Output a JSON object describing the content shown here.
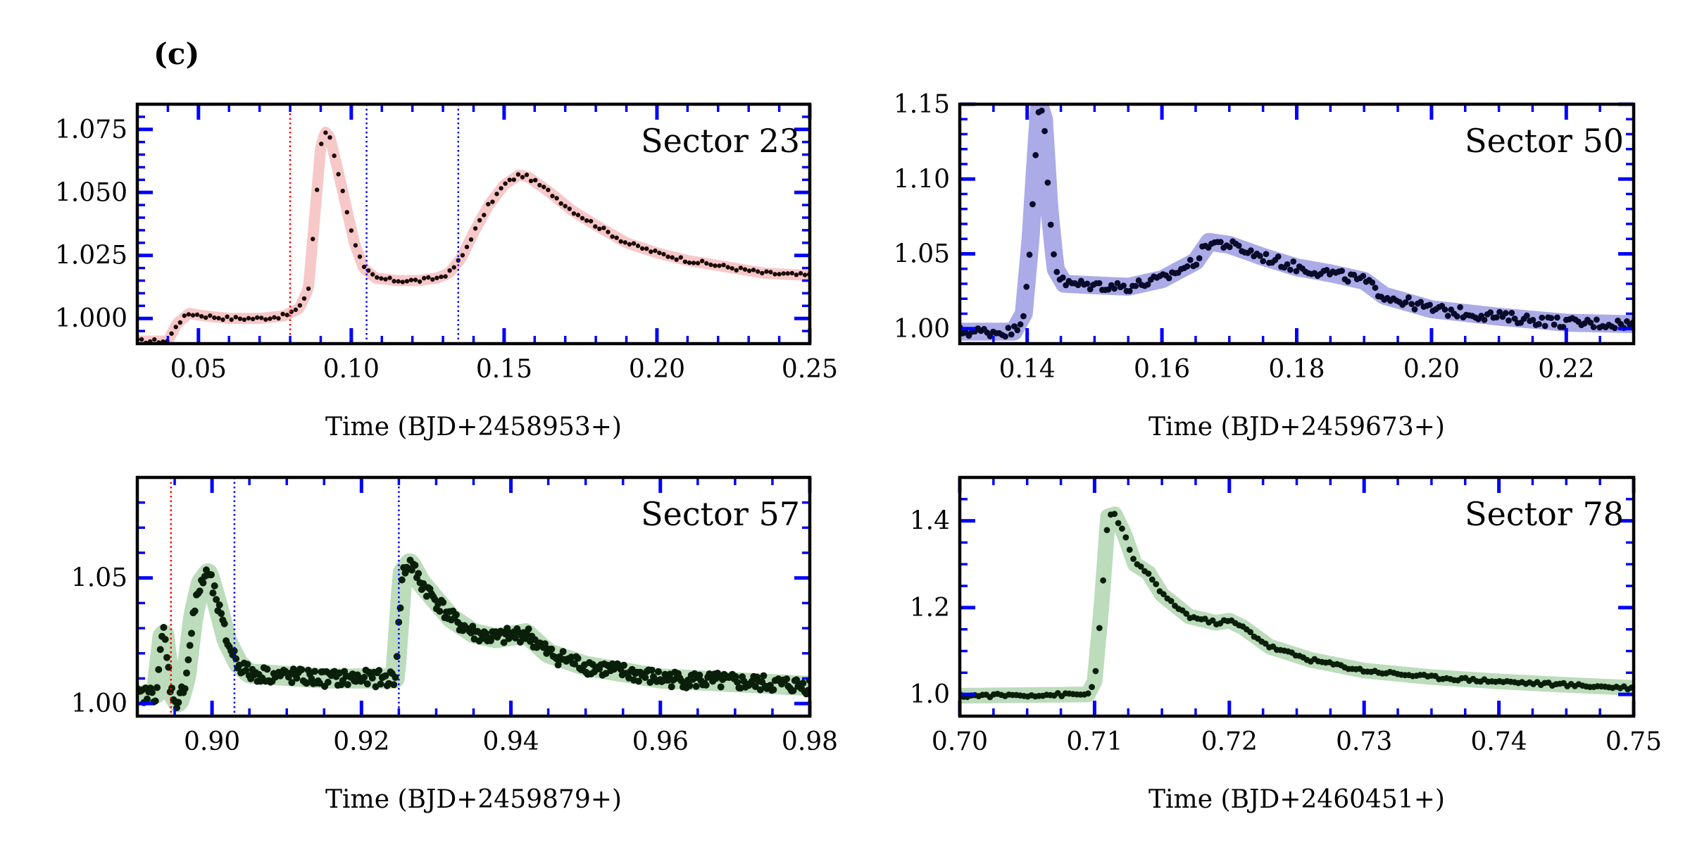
{
  "figure": {
    "panel_label": "(c)"
  },
  "colors": {
    "axes": "#000000",
    "ticks": "#0000ff",
    "band_red": "#f4b6b6",
    "band_blue": "#8f8fe0",
    "band_green": "#a6d0a6",
    "pts_s23": "#1a0a0a",
    "pts_s50": "#0a0a2a",
    "pts_s57": "#0a1f0a",
    "pts_s78": "#0a1f0a",
    "vline_red": "#ff0000",
    "vline_blue": "#0000ff"
  },
  "chart_data": [
    {
      "id": "s23",
      "type": "scatter",
      "title": "Sector 23",
      "xlabel": "Time (BJD+2458953+)",
      "ylabel": "",
      "xlim": [
        0.03,
        0.25
      ],
      "ylim": [
        0.99,
        1.085
      ],
      "xticks": [
        0.05,
        0.1,
        0.15,
        0.2,
        0.25
      ],
      "xtick_labels": [
        "0.05",
        "0.10",
        "0.15",
        "0.20",
        "0.25"
      ],
      "yticks": [
        1.0,
        1.025,
        1.05,
        1.075
      ],
      "ytick_labels": [
        "1.000",
        "1.025",
        "1.050",
        "1.075"
      ],
      "x_minor": 0.01,
      "y_minor": 0.005,
      "band_color": "band_red",
      "point_color": "pts_s23",
      "point_radius": 3.2,
      "vlines": [
        {
          "x": 0.08,
          "color": "vline_red"
        },
        {
          "x": 0.105,
          "color": "vline_blue"
        },
        {
          "x": 0.135,
          "color": "vline_blue"
        }
      ],
      "curve": [
        [
          0.04,
          0.991
        ],
        [
          0.043,
          0.998
        ],
        [
          0.047,
          1.002
        ],
        [
          0.052,
          1.001
        ],
        [
          0.06,
          1.0
        ],
        [
          0.07,
          1.0
        ],
        [
          0.078,
          1.001
        ],
        [
          0.083,
          1.004
        ],
        [
          0.086,
          1.012
        ],
        [
          0.088,
          1.04
        ],
        [
          0.09,
          1.068
        ],
        [
          0.0915,
          1.074
        ],
        [
          0.093,
          1.072
        ],
        [
          0.095,
          1.062
        ],
        [
          0.098,
          1.046
        ],
        [
          0.101,
          1.03
        ],
        [
          0.104,
          1.02
        ],
        [
          0.108,
          1.016
        ],
        [
          0.115,
          1.015
        ],
        [
          0.122,
          1.015
        ],
        [
          0.128,
          1.016
        ],
        [
          0.132,
          1.018
        ],
        [
          0.136,
          1.024
        ],
        [
          0.14,
          1.034
        ],
        [
          0.145,
          1.045
        ],
        [
          0.15,
          1.053
        ],
        [
          0.155,
          1.057
        ],
        [
          0.158,
          1.056
        ],
        [
          0.165,
          1.05
        ],
        [
          0.172,
          1.043
        ],
        [
          0.18,
          1.037
        ],
        [
          0.19,
          1.03
        ],
        [
          0.2,
          1.026
        ],
        [
          0.21,
          1.023
        ],
        [
          0.22,
          1.021
        ],
        [
          0.235,
          1.018
        ],
        [
          0.25,
          1.017
        ]
      ],
      "step": 0.0014,
      "noise": 0.0008,
      "band_width": 0.0022
    },
    {
      "id": "s50",
      "type": "scatter",
      "title": "Sector 50",
      "xlabel": "Time (BJD+2459673+)",
      "ylabel": "",
      "xlim": [
        0.13,
        0.23
      ],
      "ylim": [
        0.99,
        1.15
      ],
      "xticks": [
        0.14,
        0.16,
        0.18,
        0.2,
        0.22
      ],
      "xtick_labels": [
        "0.14",
        "0.16",
        "0.18",
        "0.20",
        "0.22"
      ],
      "yticks": [
        1.0,
        1.05,
        1.1,
        1.15
      ],
      "ytick_labels": [
        "1.00",
        "1.05",
        "1.10",
        "1.15"
      ],
      "x_minor": 0.005,
      "y_minor": 0.01,
      "band_color": "band_blue",
      "point_color": "pts_s50",
      "point_radius": 4.4,
      "vlines": [],
      "curve": [
        [
          0.13,
          0.998
        ],
        [
          0.138,
          0.998
        ],
        [
          0.1395,
          1.01
        ],
        [
          0.1405,
          1.06
        ],
        [
          0.1412,
          1.11
        ],
        [
          0.1418,
          1.15
        ],
        [
          0.1425,
          1.14
        ],
        [
          0.1433,
          1.08
        ],
        [
          0.1442,
          1.04
        ],
        [
          0.1455,
          1.03
        ],
        [
          0.15,
          1.029
        ],
        [
          0.155,
          1.028
        ],
        [
          0.16,
          1.033
        ],
        [
          0.165,
          1.045
        ],
        [
          0.167,
          1.058
        ],
        [
          0.17,
          1.056
        ],
        [
          0.175,
          1.048
        ],
        [
          0.18,
          1.041
        ],
        [
          0.185,
          1.037
        ],
        [
          0.19,
          1.032
        ],
        [
          0.193,
          1.022
        ],
        [
          0.2,
          1.013
        ],
        [
          0.21,
          1.008
        ],
        [
          0.22,
          1.004
        ],
        [
          0.23,
          1.003
        ]
      ],
      "step": 0.00045,
      "noise": 0.0035,
      "band_width": 0.006
    },
    {
      "id": "s57",
      "type": "scatter",
      "title": "Sector 57",
      "xlabel": "Time (BJD+2459879+)",
      "ylabel": "",
      "xlim": [
        0.89,
        0.98
      ],
      "ylim": [
        0.995,
        1.09
      ],
      "xticks": [
        0.9,
        0.92,
        0.94,
        0.96,
        0.98
      ],
      "xtick_labels": [
        "0.90",
        "0.92",
        "0.94",
        "0.96",
        "0.98"
      ],
      "yticks": [
        1.0,
        1.05
      ],
      "ytick_labels": [
        "1.00",
        "1.05"
      ],
      "x_minor": 0.005,
      "y_minor": 0.01,
      "band_color": "band_green",
      "point_color": "pts_s57",
      "point_radius": 5.0,
      "vlines": [
        {
          "x": 0.8945,
          "color": "vline_red"
        },
        {
          "x": 0.903,
          "color": "vline_blue"
        },
        {
          "x": 0.925,
          "color": "vline_blue"
        }
      ],
      "curve": [
        [
          0.89,
          1.003
        ],
        [
          0.8925,
          1.004
        ],
        [
          0.8935,
          1.03
        ],
        [
          0.8945,
          1.005
        ],
        [
          0.8955,
          1.0
        ],
        [
          0.8965,
          1.01
        ],
        [
          0.8975,
          1.035
        ],
        [
          0.8985,
          1.048
        ],
        [
          0.8995,
          1.052
        ],
        [
          0.9005,
          1.042
        ],
        [
          0.902,
          1.025
        ],
        [
          0.9035,
          1.016
        ],
        [
          0.905,
          1.012
        ],
        [
          0.915,
          1.01
        ],
        [
          0.9245,
          1.01
        ],
        [
          0.9255,
          1.052
        ],
        [
          0.9265,
          1.056
        ],
        [
          0.928,
          1.048
        ],
        [
          0.932,
          1.034
        ],
        [
          0.935,
          1.028
        ],
        [
          0.938,
          1.026
        ],
        [
          0.942,
          1.028
        ],
        [
          0.945,
          1.02
        ],
        [
          0.95,
          1.015
        ],
        [
          0.96,
          1.01
        ],
        [
          0.98,
          1.007
        ]
      ],
      "step": 0.00022,
      "noise": 0.0033,
      "band_width": 0.004
    },
    {
      "id": "s78",
      "type": "scatter",
      "title": "Sector 78",
      "xlabel": "Time (BJD+2460451+)",
      "ylabel": "",
      "xlim": [
        0.7,
        0.75
      ],
      "ylim": [
        0.95,
        1.5
      ],
      "xticks": [
        0.7,
        0.71,
        0.72,
        0.73,
        0.74,
        0.75
      ],
      "xtick_labels": [
        "0.70",
        "0.71",
        "0.72",
        "0.73",
        "0.74",
        "0.75"
      ],
      "yticks": [
        1.0,
        1.2,
        1.4
      ],
      "ytick_labels": [
        "1.0",
        "1.2",
        "1.4"
      ],
      "x_minor": 0.0025,
      "y_minor": 0.05,
      "band_color": "band_green",
      "point_color": "pts_s78",
      "point_radius": 4.4,
      "vlines": [],
      "curve": [
        [
          0.7,
          0.997
        ],
        [
          0.7095,
          1.0
        ],
        [
          0.71,
          1.03
        ],
        [
          0.7105,
          1.2
        ],
        [
          0.711,
          1.41
        ],
        [
          0.7115,
          1.415
        ],
        [
          0.7122,
          1.37
        ],
        [
          0.713,
          1.3
        ],
        [
          0.714,
          1.28
        ],
        [
          0.715,
          1.23
        ],
        [
          0.717,
          1.18
        ],
        [
          0.719,
          1.165
        ],
        [
          0.72,
          1.17
        ],
        [
          0.721,
          1.155
        ],
        [
          0.723,
          1.11
        ],
        [
          0.726,
          1.08
        ],
        [
          0.73,
          1.055
        ],
        [
          0.735,
          1.04
        ],
        [
          0.74,
          1.03
        ],
        [
          0.745,
          1.022
        ],
        [
          0.75,
          1.015
        ]
      ],
      "step": 0.00028,
      "noise": 0.004,
      "band_width": 0.018
    }
  ]
}
